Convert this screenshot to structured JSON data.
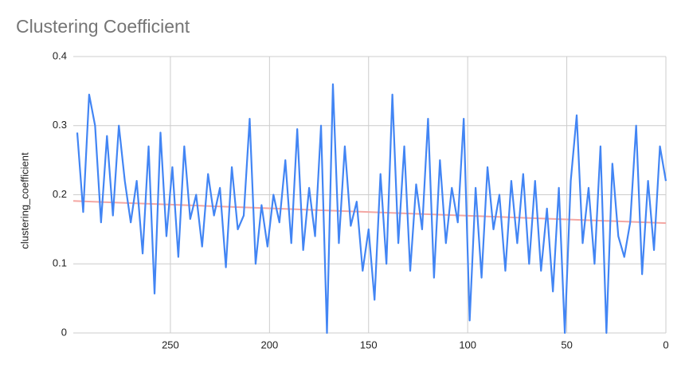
{
  "chart_data": {
    "type": "line",
    "title": "Clustering Coefficient",
    "ylabel": "clustering_coefficient",
    "color": "#4285f4",
    "grid": true,
    "xlim": [
      299,
      0
    ],
    "xticks": [
      250,
      200,
      150,
      100,
      50,
      0
    ],
    "ylim": [
      0,
      0.4
    ],
    "yticks": [
      0,
      0.1,
      0.2,
      0.3,
      0.4
    ],
    "x": [
      297,
      294,
      291,
      288,
      285,
      282,
      279,
      276,
      273,
      270,
      267,
      264,
      261,
      258,
      255,
      252,
      249,
      246,
      243,
      240,
      237,
      234,
      231,
      228,
      225,
      222,
      219,
      216,
      213,
      210,
      207,
      204,
      201,
      198,
      195,
      192,
      189,
      186,
      183,
      180,
      177,
      174,
      171,
      168,
      165,
      162,
      159,
      156,
      153,
      150,
      147,
      144,
      141,
      138,
      135,
      132,
      129,
      126,
      123,
      120,
      117,
      114,
      111,
      108,
      105,
      102,
      99,
      96,
      93,
      90,
      87,
      84,
      81,
      78,
      75,
      72,
      69,
      66,
      63,
      60,
      57,
      54,
      51,
      48,
      45,
      42,
      39,
      36,
      33,
      30,
      27,
      24,
      21,
      18,
      15,
      12,
      9,
      6,
      3,
      0
    ],
    "values": [
      0.29,
      0.175,
      0.345,
      0.3,
      0.16,
      0.285,
      0.17,
      0.3,
      0.22,
      0.16,
      0.22,
      0.115,
      0.27,
      0.057,
      0.29,
      0.14,
      0.24,
      0.11,
      0.27,
      0.165,
      0.2,
      0.125,
      0.23,
      0.17,
      0.21,
      0.095,
      0.24,
      0.15,
      0.17,
      0.31,
      0.1,
      0.185,
      0.125,
      0.2,
      0.16,
      0.25,
      0.13,
      0.295,
      0.12,
      0.21,
      0.14,
      0.3,
      0.0,
      0.36,
      0.13,
      0.27,
      0.155,
      0.19,
      0.09,
      0.15,
      0.048,
      0.23,
      0.1,
      0.345,
      0.13,
      0.27,
      0.09,
      0.215,
      0.15,
      0.31,
      0.08,
      0.25,
      0.13,
      0.21,
      0.16,
      0.31,
      0.018,
      0.21,
      0.08,
      0.24,
      0.15,
      0.2,
      0.09,
      0.22,
      0.13,
      0.23,
      0.1,
      0.22,
      0.09,
      0.18,
      0.06,
      0.21,
      0.0,
      0.22,
      0.315,
      0.13,
      0.21,
      0.1,
      0.27,
      0.0,
      0.245,
      0.14,
      0.11,
      0.16,
      0.3,
      0.085,
      0.22,
      0.12,
      0.27,
      0.22
    ],
    "trendline": {
      "color": "#f4a7a3",
      "x": [
        299,
        0
      ],
      "values": [
        0.191,
        0.159
      ]
    }
  }
}
